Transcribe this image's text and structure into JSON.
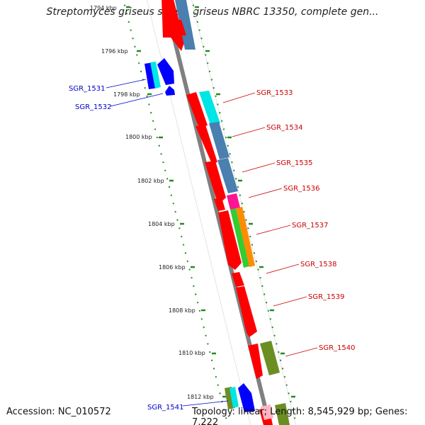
{
  "title": "Streptomyces griseus subsp. griseus NBRC 13350, complete gen...",
  "accession_text": "Accession: NC_010572",
  "topology_text": "Topology: linear; Length: 8,545,929 bp; Genes: 7,222",
  "scale_labels": [
    "1794 kbp",
    "1796 kbp",
    "1798 kbp",
    "1800 kbp",
    "1802 kbp",
    "1804 kbp",
    "1806 kbp",
    "1808 kbp",
    "1810 kbp",
    "1812 kbp"
  ],
  "gene_labels": {
    "SGR_1531": "SGR_1531",
    "SGR_1532": "SGR_1532",
    "SGR_1533": "SGR_1533",
    "SGR_1534": "SGR_1534",
    "SGR_1535": "SGR_1535",
    "SGR_1536": "SGR_1536",
    "SGR_1537": "SGR_1537",
    "SGR_1538": "SGR_1538",
    "SGR_1539": "SGR_1539",
    "SGR_1540": "SGR_1540",
    "SGR_1541": "SGR_1541"
  },
  "colors": {
    "forward_gene": "#ff0000",
    "reverse_gene": "#0000ff",
    "steelblue": "#4a7fb0",
    "cyan": "#00e5e5",
    "magenta": "#ff1493",
    "green": "#33cc33",
    "orange": "#ff8c00",
    "olive": "#6b8e23",
    "scale_tick": "#228b22",
    "backbone": "#808080"
  }
}
